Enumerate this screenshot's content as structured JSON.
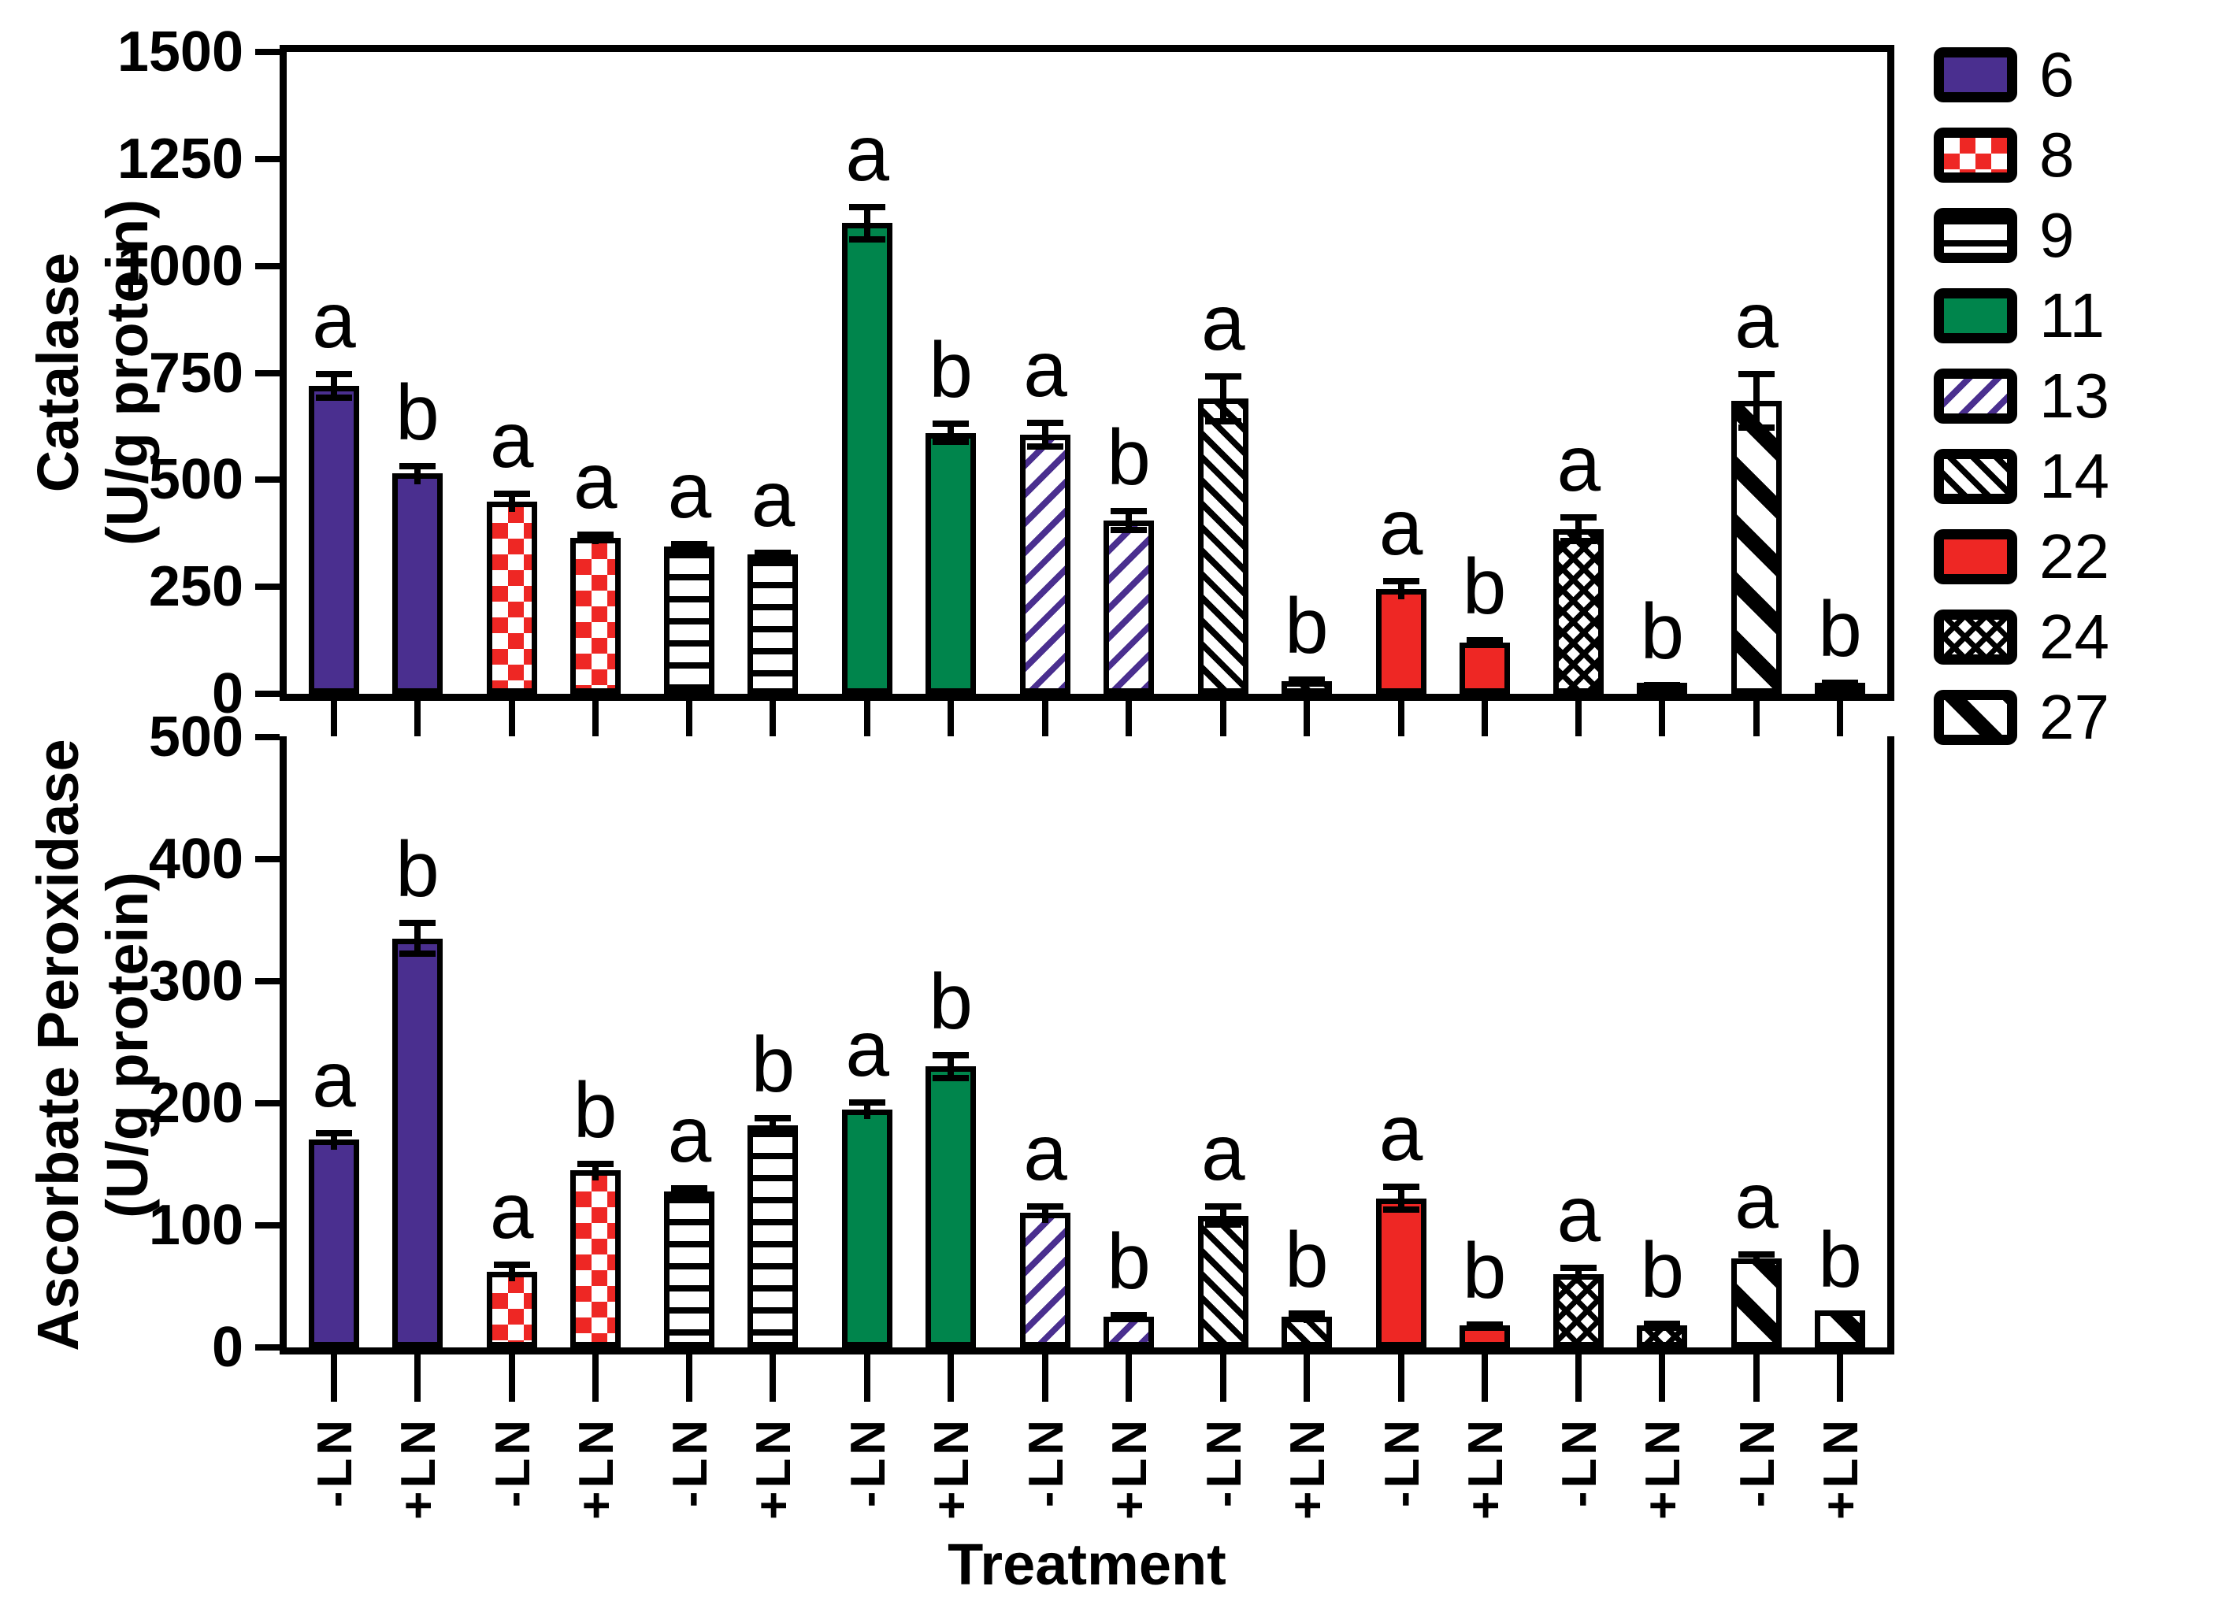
{
  "figure": {
    "xlabel": "Treatment",
    "treatments": [
      "-LN",
      "+LN"
    ],
    "groups": [
      "6",
      "8",
      "9",
      "11",
      "13",
      "14",
      "22",
      "24",
      "27"
    ],
    "colors": {
      "purple": "#4A2F8F",
      "red": "#EE2724",
      "green": "#00854C",
      "black": "#000000",
      "white": "#ffffff"
    },
    "legend": {
      "position": "right",
      "items": [
        {
          "label": "6",
          "pattern": "solid-purple"
        },
        {
          "label": "8",
          "pattern": "red-white-checkerboard"
        },
        {
          "label": "9",
          "pattern": "horizontal-black-lines"
        },
        {
          "label": "11",
          "pattern": "solid-green"
        },
        {
          "label": "13",
          "pattern": "purple-forward-diagonal-stripes"
        },
        {
          "label": "14",
          "pattern": "black-thin-back-diagonal-stripes"
        },
        {
          "label": "22",
          "pattern": "solid-red"
        },
        {
          "label": "24",
          "pattern": "black-diagonal-crosshatch"
        },
        {
          "label": "27",
          "pattern": "black-wide-back-diagonal-stripes"
        }
      ]
    }
  },
  "chart_data": [
    {
      "type": "bar",
      "ylabel_line1": "Catalase",
      "ylabel_line2": "(U/g protein)",
      "ylim": [
        0,
        1500
      ],
      "yticks": [
        0,
        250,
        500,
        750,
        1000,
        1250,
        1500
      ],
      "grid": false,
      "categories": [
        "6",
        "8",
        "9",
        "11",
        "13",
        "14",
        "22",
        "24",
        "27"
      ],
      "series": [
        {
          "name": "-LN",
          "values": [
            720,
            450,
            345,
            1100,
            605,
            690,
            245,
            385,
            685
          ],
          "errors": [
            35,
            25,
            12,
            45,
            35,
            60,
            25,
            35,
            70
          ],
          "sig": [
            "a",
            "a",
            "a",
            "a",
            "a",
            "a",
            "a",
            "a",
            "a"
          ]
        },
        {
          "name": "+LN",
          "values": [
            515,
            365,
            325,
            610,
            405,
            30,
            120,
            20,
            25
          ],
          "errors": [
            25,
            15,
            12,
            28,
            30,
            10,
            12,
            8,
            8
          ],
          "sig": [
            "b",
            "a",
            "a",
            "b",
            "b",
            "b",
            "b",
            "b",
            "b"
          ]
        }
      ]
    },
    {
      "type": "bar",
      "ylabel_line1": "Ascorbate Peroxidase",
      "ylabel_line2": "(U/g protein)",
      "ylim": [
        0,
        500
      ],
      "yticks": [
        0,
        100,
        200,
        300,
        400,
        500
      ],
      "grid": false,
      "categories": [
        "6",
        "8",
        "9",
        "11",
        "13",
        "14",
        "22",
        "24",
        "27"
      ],
      "series": [
        {
          "name": "-LN",
          "values": [
            170,
            62,
            128,
            195,
            110,
            108,
            122,
            60,
            73
          ],
          "errors": [
            8,
            8,
            5,
            8,
            8,
            10,
            12,
            8,
            6
          ],
          "sig": [
            "a",
            "a",
            "a",
            "a",
            "a",
            "a",
            "a",
            "a",
            "a"
          ]
        },
        {
          "name": "+LN",
          "values": [
            335,
            145,
            182,
            230,
            25,
            25,
            18,
            18,
            30
          ],
          "errors": [
            15,
            8,
            8,
            12,
            4,
            5,
            3,
            4,
            0
          ],
          "sig": [
            "b",
            "b",
            "b",
            "b",
            "b",
            "b",
            "b",
            "b",
            "b"
          ]
        }
      ]
    }
  ]
}
